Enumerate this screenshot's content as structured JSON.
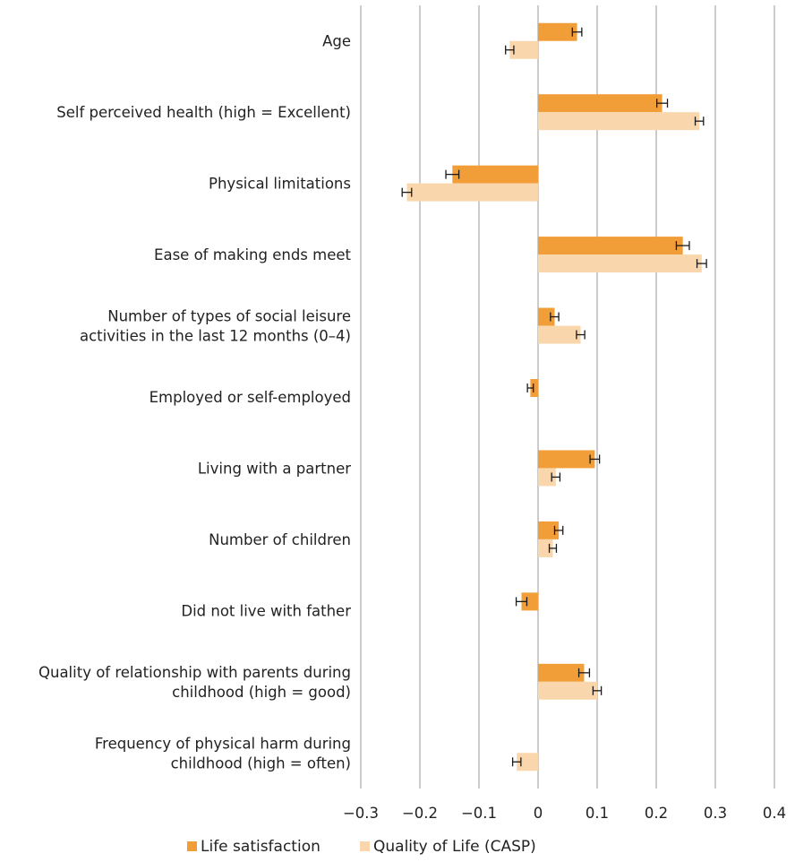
{
  "chart_data": {
    "type": "bar",
    "orientation": "horizontal",
    "categories": [
      [
        "Age"
      ],
      [
        "Self perceived health (high = Excellent)"
      ],
      [
        "Physical limitations"
      ],
      [
        "Ease of making ends meet"
      ],
      [
        "Number of types of social leisure",
        "activities in the last 12 months (0–4)"
      ],
      [
        "Employed or self-employed"
      ],
      [
        "Living with a partner"
      ],
      [
        "Number of children"
      ],
      [
        "Did not live with father"
      ],
      [
        "Quality of relationship with parents during",
        "childhood (high = good)"
      ],
      [
        "Frequency of physical harm during",
        "childhood (high = often)"
      ]
    ],
    "series": [
      {
        "name": "Life satisfaction",
        "color": "#f29e38",
        "values": [
          0.066,
          0.21,
          -0.145,
          0.245,
          0.028,
          -0.013,
          0.096,
          0.035,
          -0.028,
          0.078,
          0.0
        ],
        "errors": [
          0.008,
          0.009,
          0.011,
          0.011,
          0.007,
          0.005,
          0.008,
          0.007,
          0.009,
          0.009,
          0.0
        ]
      },
      {
        "name": "Quality of Life (CASP)",
        "color": "#fad6ac",
        "values": [
          -0.048,
          0.273,
          -0.222,
          0.277,
          0.072,
          0.0,
          0.03,
          0.025,
          0.0,
          0.1,
          -0.036
        ],
        "errors": [
          0.007,
          0.007,
          0.008,
          0.008,
          0.007,
          0.0,
          0.007,
          0.006,
          0.0,
          0.007,
          0.007
        ]
      }
    ],
    "x_ticks": [
      "−0.3",
      "−0.2",
      "−0.1",
      "0",
      "0.1",
      "0.2",
      "0.3",
      "0.4"
    ],
    "x_tick_values": [
      -0.3,
      -0.2,
      -0.1,
      0,
      0.1,
      0.2,
      0.3,
      0.4
    ],
    "xlim": [
      -0.3,
      0.4
    ],
    "grid": true,
    "legend_position": "bottom",
    "error_bars": true
  }
}
